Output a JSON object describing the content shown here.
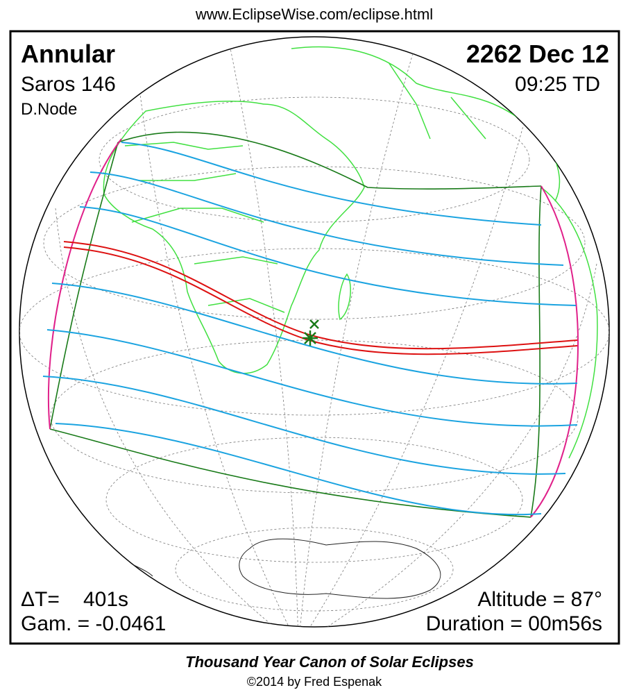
{
  "header": {
    "url": "www.EclipseWise.com/eclipse.html"
  },
  "eclipse": {
    "type": "Annular",
    "date": "2262 Dec 12",
    "saros": "Saros 146",
    "time": "09:25 TD",
    "node": "D.Node",
    "delta_t_label": "ΔT=",
    "delta_t": "401s",
    "gamma": "Gam. = -0.0461",
    "altitude": "Altitude = 87°",
    "duration": "Duration = 00m56s"
  },
  "footer": {
    "title": "Thousand Year Canon of Solar Eclipses",
    "copyright": "©2014 by Fred Espenak"
  }
}
